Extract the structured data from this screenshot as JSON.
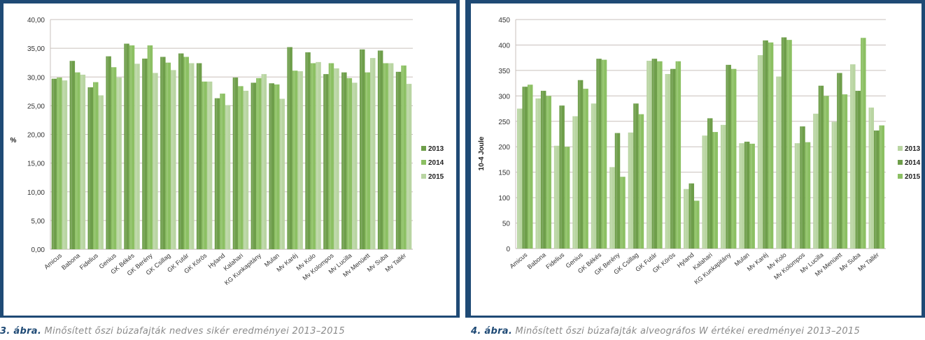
{
  "chart_data": [
    {
      "type": "bar",
      "title": "",
      "xlabel": "",
      "ylabel": "%",
      "ylim": [
        0,
        40
      ],
      "yticks": [
        "0,00",
        "5,00",
        "10,00",
        "15,00",
        "20,00",
        "25,00",
        "30,00",
        "35,00",
        "40,00"
      ],
      "ytick_values": [
        0,
        5,
        10,
        15,
        20,
        25,
        30,
        35,
        40
      ],
      "grid": true,
      "legend_position": "right",
      "categories": [
        "Amicus",
        "Babona",
        "Fidelius",
        "Genius",
        "GK Békés",
        "GK Berény",
        "GK Csillag",
        "GK Futár",
        "GK Körös",
        "Hyland",
        "Kalahari",
        "KG Kunkapitány",
        "Mulan",
        "Mv Karéj",
        "Mv Kolo",
        "Mv Kolompos",
        "Mv Lucilla",
        "Mv Menüett",
        "Mv Suba",
        "Mv Tallér"
      ],
      "series": [
        {
          "name": "2013",
          "color": "#6e9e4a",
          "values": [
            29.7,
            32.8,
            28.2,
            33.6,
            35.8,
            33.2,
            33.5,
            34.1,
            32.4,
            26.3,
            29.9,
            29.0,
            28.9,
            35.2,
            34.3,
            30.5,
            30.8,
            34.8,
            34.6,
            30.9
          ]
        },
        {
          "name": "2014",
          "color": "#8cc063",
          "values": [
            29.9,
            30.8,
            29.1,
            31.7,
            35.5,
            35.5,
            32.5,
            33.5,
            29.2,
            27.1,
            28.4,
            29.8,
            28.7,
            31.1,
            32.4,
            32.4,
            29.8,
            30.8,
            32.4,
            32.0
          ]
        },
        {
          "name": "2015",
          "color": "#b9d5a2",
          "values": [
            29.4,
            30.4,
            26.8,
            29.9,
            32.3,
            30.7,
            31.2,
            32.4,
            29.2,
            25.1,
            27.6,
            30.5,
            26.2,
            31.0,
            32.6,
            31.5,
            29.0,
            33.3,
            32.4,
            28.8
          ]
        }
      ]
    },
    {
      "type": "bar",
      "title": "",
      "xlabel": "",
      "ylabel": "10-4 Joule",
      "ylim": [
        0,
        450
      ],
      "yticks": [
        "0",
        "50",
        "100",
        "150",
        "200",
        "250",
        "300",
        "350",
        "400",
        "450"
      ],
      "ytick_values": [
        0,
        50,
        100,
        150,
        200,
        250,
        300,
        350,
        400,
        450
      ],
      "grid": true,
      "legend_position": "right",
      "categories": [
        "Amicus",
        "Babona",
        "Fidelius",
        "Genius",
        "GK Békés",
        "GK Berény",
        "GK Csillag",
        "GK Futár",
        "GK Körös",
        "Hyland",
        "Kalahari",
        "KG Kunkapitány",
        "Mulan",
        "Mv Karéj",
        "Mv Kolo",
        "Mv Kolompos",
        "Mv Lucilla",
        "Mv Menüett",
        "Mv Suba",
        "Mv Tallér"
      ],
      "series": [
        {
          "name": "2013",
          "color": "#b9d5a2",
          "values": [
            275,
            295,
            202,
            260,
            285,
            160,
            228,
            369,
            343,
            117,
            222,
            243,
            207,
            380,
            338,
            207,
            265,
            249,
            362,
            277
          ]
        },
        {
          "name": "2014",
          "color": "#6e9e4a",
          "values": [
            318,
            310,
            281,
            331,
            373,
            227,
            285,
            373,
            353,
            128,
            256,
            361,
            210,
            409,
            415,
            240,
            320,
            345,
            310,
            232
          ]
        },
        {
          "name": "2015",
          "color": "#8cc063",
          "values": [
            322,
            300,
            200,
            314,
            371,
            141,
            264,
            368,
            368,
            94,
            229,
            353,
            206,
            405,
            410,
            209,
            300,
            303,
            414,
            242
          ]
        }
      ]
    }
  ],
  "captions": [
    {
      "label": "3. ábra.",
      "text": " Minősített őszi búzafajták nedves sikér eredményei 2013–2015"
    },
    {
      "label": "4. ábra.",
      "text": " Minősített őszi búzafajták alveográfos W értékei eredményei 2013–2015"
    }
  ]
}
